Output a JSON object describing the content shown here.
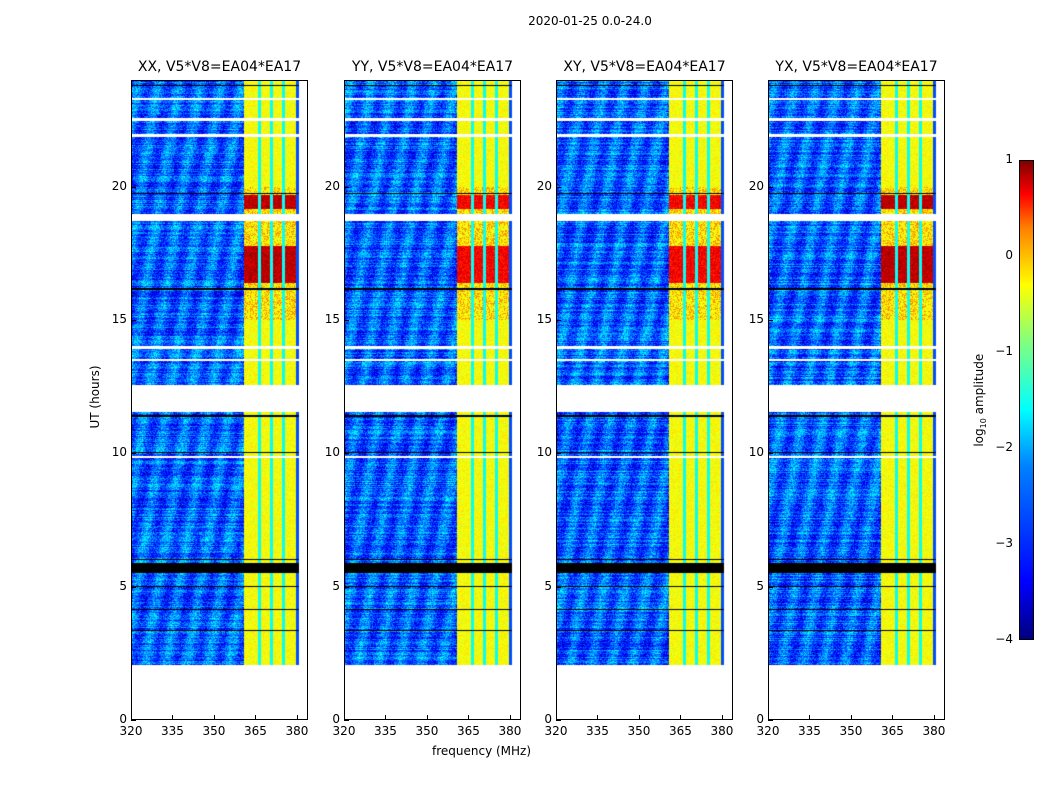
{
  "suptitle": "2020-01-25 0.0-24.0",
  "chart_data": {
    "type": "heatmap",
    "title": "2020-01-25 0.0-24.0",
    "xlabel": "frequency (MHz)",
    "ylabel": "UT (hours)",
    "xlim": [
      320,
      384
    ],
    "ylim": [
      0,
      24
    ],
    "xticks": [
      320,
      335,
      350,
      365,
      380
    ],
    "yticks": [
      0,
      5,
      10,
      15,
      20
    ],
    "panels": [
      {
        "title": "XX, V5*V8=EA04*EA17"
      },
      {
        "title": "YY, V5*V8=EA04*EA17"
      },
      {
        "title": "XY, V5*V8=EA04*EA17"
      },
      {
        "title": "YX, V5*V8=EA04*EA17"
      }
    ],
    "data_time_range": [
      2.05,
      24
    ],
    "bright_band_mhz": [
      361,
      380
    ],
    "band_dip_channels_mhz": [
      366.5,
      371,
      375.5
    ],
    "strong_emission_hours": [
      [
        16.4,
        17.8
      ],
      [
        19.2,
        19.7
      ]
    ],
    "flagged_white_hours": [
      [
        11.55,
        12.55
      ],
      [
        18.75,
        18.98
      ],
      [
        13.9,
        14.05
      ],
      [
        13.45,
        13.55
      ],
      [
        9.8,
        9.9
      ],
      [
        22.5,
        22.6
      ],
      [
        21.9,
        22.0
      ],
      [
        23.3,
        23.35
      ]
    ],
    "flagged_black_hours": [
      [
        5.5,
        5.85
      ],
      [
        4.95,
        5.0
      ],
      [
        4.1,
        4.15
      ],
      [
        19.75,
        19.8
      ],
      [
        16.15,
        16.2
      ],
      [
        10.0,
        10.05
      ],
      [
        11.35,
        11.42
      ],
      [
        23.8,
        23.85
      ],
      [
        6.0,
        6.03
      ],
      [
        8.6,
        8.63
      ],
      [
        3.3,
        3.33
      ]
    ],
    "colorbar": {
      "label": "log10 amplitude",
      "label_main": "log",
      "label_sub": "10",
      "label_rest": " amplitude",
      "range": [
        -4,
        1
      ],
      "ticks": [
        "1",
        "0",
        "−1",
        "−2",
        "−3",
        "−4"
      ],
      "colormap": "jet"
    }
  }
}
